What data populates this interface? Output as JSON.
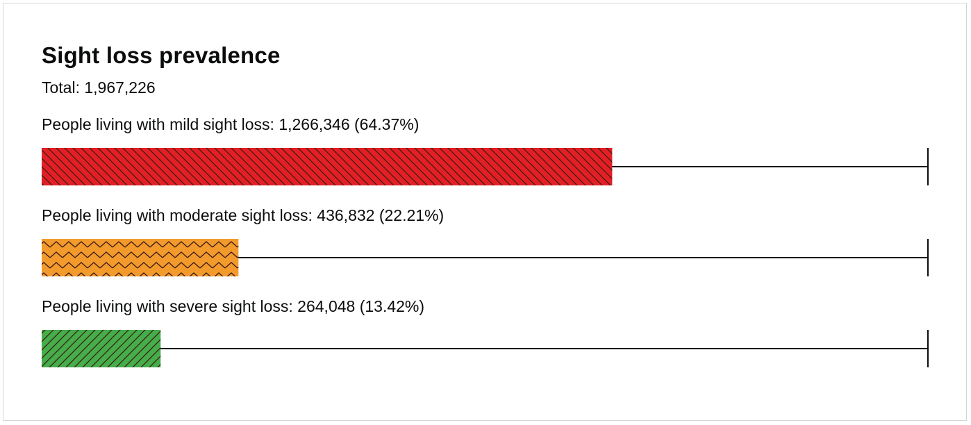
{
  "colors": {
    "mild": "#e31f26",
    "moderate": "#f39a2d",
    "severe": "#45ad4a",
    "track": "#0b0c0c",
    "hatch": "#3a1a10"
  },
  "chart_data": {
    "type": "bar",
    "orientation": "horizontal",
    "title": "Sight loss prevalence",
    "total_label": "Total: 1,967,226",
    "total": 1967226,
    "xlim": [
      0,
      1967226
    ],
    "grid": false,
    "legend": "none",
    "categories": [
      "People living with mild sight loss",
      "People living with moderate sight loss",
      "People living with severe sight loss"
    ],
    "values": [
      1266346,
      436832,
      264048
    ],
    "percentages": [
      64.37,
      22.21,
      13.42
    ],
    "labels": [
      "People living with mild sight loss: 1,266,346 (64.37%)",
      "People living with moderate sight loss: 436,832 (22.21%)",
      "People living with severe sight loss: 264,048 (13.42%)"
    ],
    "patterns": [
      "diagonal-back",
      "zigzag",
      "diagonal-forward"
    ]
  }
}
